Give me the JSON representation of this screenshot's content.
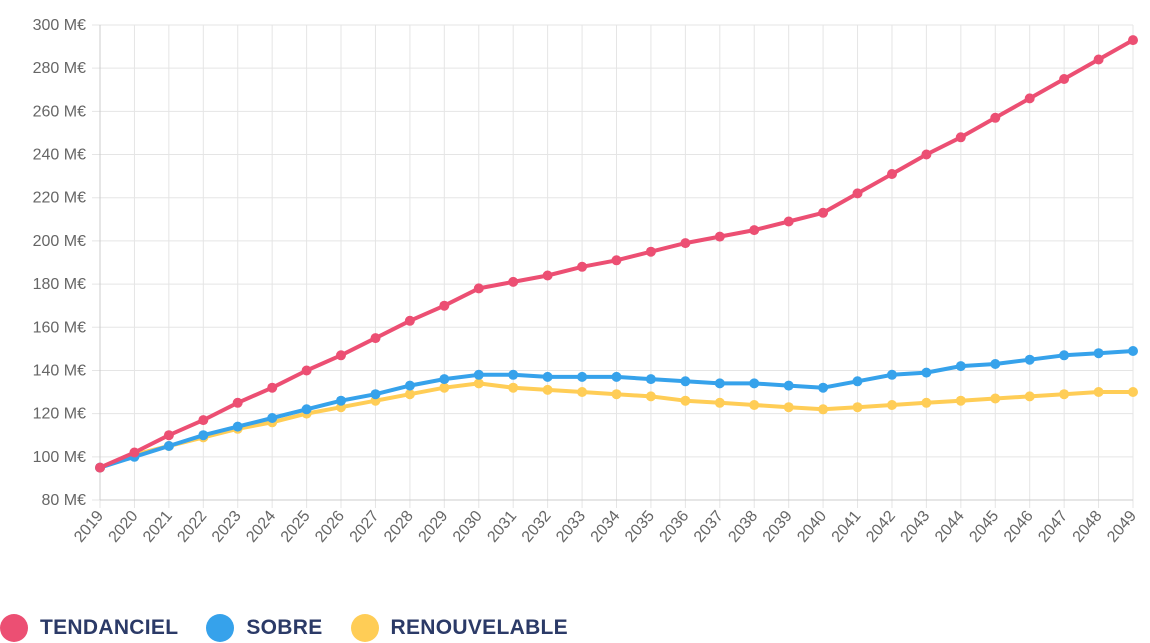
{
  "chart_data": {
    "type": "line",
    "x": [
      "2019",
      "2020",
      "2021",
      "2022",
      "2023",
      "2024",
      "2025",
      "2026",
      "2027",
      "2028",
      "2029",
      "2030",
      "2031",
      "2032",
      "2033",
      "2034",
      "2035",
      "2036",
      "2037",
      "2038",
      "2039",
      "2040",
      "2041",
      "2042",
      "2043",
      "2044",
      "2045",
      "2046",
      "2047",
      "2048",
      "2049"
    ],
    "y_ticks": [
      "80 M€",
      "100 M€",
      "120 M€",
      "140 M€",
      "160 M€",
      "180 M€",
      "200 M€",
      "220 M€",
      "240 M€",
      "260 M€",
      "280 M€",
      "300 M€"
    ],
    "ylim": [
      80,
      300
    ],
    "grid": true,
    "legend_position": "bottom-left",
    "series": [
      {
        "name": "TENDANCIEL",
        "color": "#ec4f73",
        "values": [
          95,
          102,
          110,
          117,
          125,
          132,
          140,
          147,
          155,
          163,
          170,
          178,
          181,
          184,
          188,
          191,
          195,
          199,
          202,
          205,
          209,
          213,
          222,
          231,
          240,
          248,
          257,
          266,
          275,
          284,
          293
        ]
      },
      {
        "name": "SOBRE",
        "color": "#36a2eb",
        "values": [
          95,
          100,
          105,
          110,
          114,
          118,
          122,
          126,
          129,
          133,
          136,
          138,
          138,
          137,
          137,
          137,
          136,
          135,
          134,
          134,
          133,
          132,
          135,
          138,
          139,
          142,
          143,
          145,
          147,
          148,
          149
        ]
      },
      {
        "name": "RENOUVELABLE",
        "color": "#ffcd56",
        "values": [
          95,
          101,
          105,
          109,
          113,
          116,
          120,
          123,
          126,
          129,
          132,
          134,
          132,
          131,
          130,
          129,
          128,
          126,
          125,
          124,
          123,
          122,
          123,
          124,
          125,
          126,
          127,
          128,
          129,
          130,
          130
        ]
      }
    ]
  }
}
